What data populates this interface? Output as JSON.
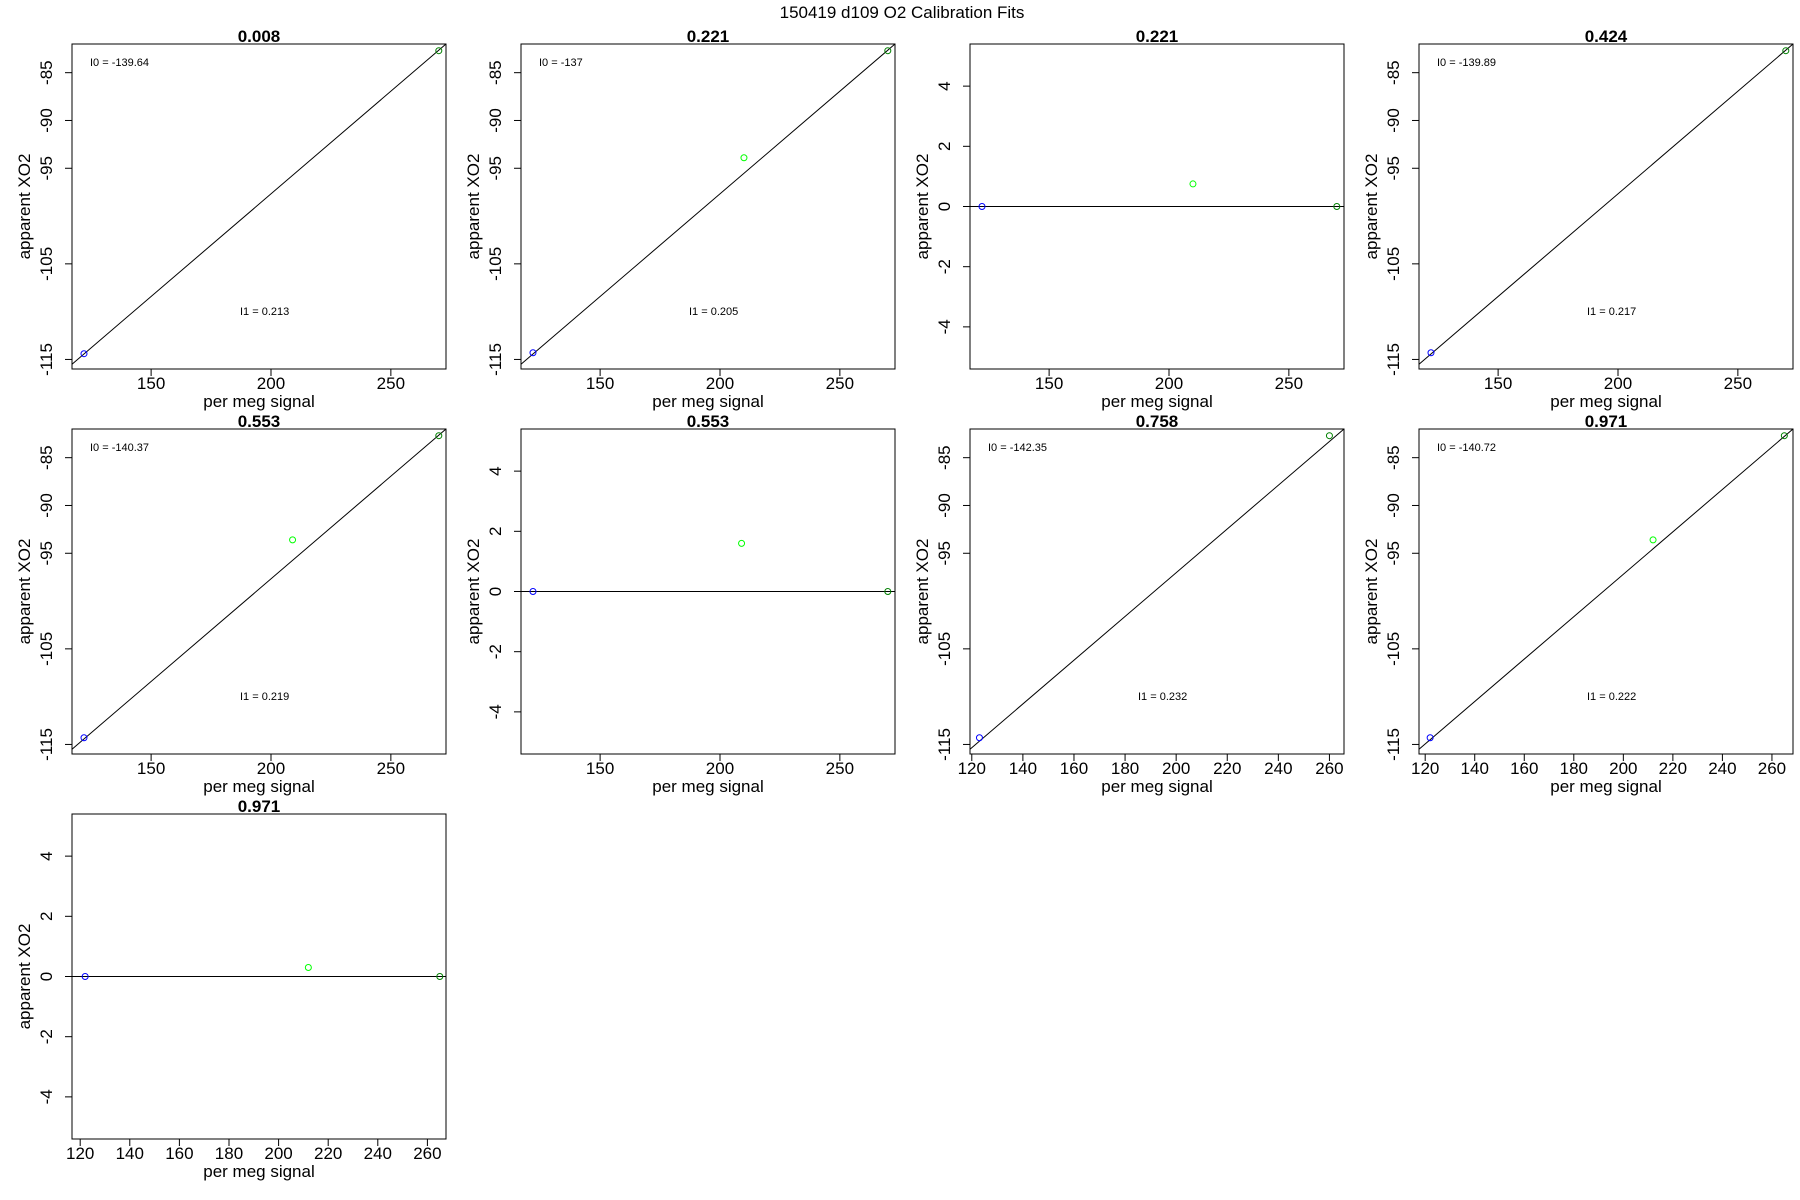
{
  "figure_title": "150419   d109   O2 Calibration Fits",
  "colors": {
    "background": "#ffffff",
    "axis": "#000000",
    "fit_line": "#000000",
    "point_low": "#0000ff",
    "point_mid": "#00ff00",
    "point_high": "#008000"
  },
  "chart_data": [
    {
      "type": "scatter",
      "title": "0.008",
      "xlabel": "per meg signal",
      "ylabel": "apparent XO2",
      "xlim": [
        117,
        273
      ],
      "ylim": [
        -116,
        -82
      ],
      "xticks": [
        150,
        200,
        250
      ],
      "yticks": [
        -115,
        -105,
        -95,
        -90,
        -85
      ],
      "points": [
        {
          "x": 122,
          "y": -114.4,
          "color": "blue"
        },
        {
          "x": 270,
          "y": -82.7,
          "color": "darkgreen"
        }
      ],
      "fit": {
        "type": "line",
        "from": [
          117,
          -115.5
        ],
        "to": [
          273,
          -82
        ]
      },
      "annotations": [
        "I0 =  -139.64",
        "I1 =  0.213"
      ]
    },
    {
      "type": "scatter",
      "title": "0.221",
      "xlabel": "per meg signal",
      "ylabel": "apparent XO2",
      "xlim": [
        117,
        273
      ],
      "ylim": [
        -116,
        -82
      ],
      "xticks": [
        150,
        200,
        250
      ],
      "yticks": [
        -115,
        -105,
        -95,
        -90,
        -85
      ],
      "points": [
        {
          "x": 122,
          "y": -114.3,
          "color": "blue"
        },
        {
          "x": 210,
          "y": -93.9,
          "color": "green"
        },
        {
          "x": 270,
          "y": -82.7,
          "color": "darkgreen"
        }
      ],
      "fit": {
        "type": "line",
        "from": [
          117,
          -115.5
        ],
        "to": [
          273,
          -82
        ]
      },
      "annotations": [
        "I0 =  -137",
        "I1 =  0.205"
      ]
    },
    {
      "type": "scatter",
      "title": "0.221",
      "xlabel": "per meg signal",
      "ylabel": "apparent XO2",
      "xlim": [
        117,
        273
      ],
      "ylim": [
        -5.4,
        5.4
      ],
      "xticks": [
        150,
        200,
        250
      ],
      "yticks": [
        -4,
        -2,
        0,
        2,
        4
      ],
      "points": [
        {
          "x": 122,
          "y": 0,
          "color": "blue"
        },
        {
          "x": 210,
          "y": 0.75,
          "color": "green"
        },
        {
          "x": 270,
          "y": 0,
          "color": "darkgreen"
        }
      ],
      "fit": {
        "type": "hline",
        "y": 0
      },
      "annotations": []
    },
    {
      "type": "scatter",
      "title": "0.424",
      "xlabel": "per meg signal",
      "ylabel": "apparent XO2",
      "xlim": [
        117,
        273
      ],
      "ylim": [
        -116,
        -82
      ],
      "xticks": [
        150,
        200,
        250
      ],
      "yticks": [
        -115,
        -105,
        -95,
        -90,
        -85
      ],
      "points": [
        {
          "x": 122,
          "y": -114.3,
          "color": "blue"
        },
        {
          "x": 270,
          "y": -82.7,
          "color": "darkgreen"
        }
      ],
      "fit": {
        "type": "line",
        "from": [
          117,
          -115.5
        ],
        "to": [
          273,
          -82
        ]
      },
      "annotations": [
        "I0 =  -139.89",
        "I1 =  0.217"
      ]
    },
    {
      "type": "scatter",
      "title": "0.553",
      "xlabel": "per meg signal",
      "ylabel": "apparent XO2",
      "xlim": [
        117,
        273
      ],
      "ylim": [
        -116,
        -82
      ],
      "xticks": [
        150,
        200,
        250
      ],
      "yticks": [
        -115,
        -105,
        -95,
        -90,
        -85
      ],
      "points": [
        {
          "x": 122,
          "y": -114.3,
          "color": "blue"
        },
        {
          "x": 209,
          "y": -93.6,
          "color": "green"
        },
        {
          "x": 270,
          "y": -82.7,
          "color": "darkgreen"
        }
      ],
      "fit": {
        "type": "line",
        "from": [
          117,
          -115.5
        ],
        "to": [
          273,
          -82
        ]
      },
      "annotations": [
        "I0 =  -140.37",
        "I1 =  0.219"
      ]
    },
    {
      "type": "scatter",
      "title": "0.553",
      "xlabel": "per meg signal",
      "ylabel": "apparent XO2",
      "xlim": [
        117,
        273
      ],
      "ylim": [
        -5.4,
        5.4
      ],
      "xticks": [
        150,
        200,
        250
      ],
      "yticks": [
        -4,
        -2,
        0,
        2,
        4
      ],
      "points": [
        {
          "x": 122,
          "y": 0,
          "color": "blue"
        },
        {
          "x": 209,
          "y": 1.6,
          "color": "green"
        },
        {
          "x": 270,
          "y": 0,
          "color": "darkgreen"
        }
      ],
      "fit": {
        "type": "hline",
        "y": 0
      },
      "annotations": []
    },
    {
      "type": "scatter",
      "title": "0.758",
      "xlabel": "per meg signal",
      "ylabel": "apparent XO2",
      "xlim": [
        119.3,
        265.7
      ],
      "ylim": [
        -116,
        -82
      ],
      "xticks": [
        120,
        140,
        160,
        180,
        200,
        220,
        240,
        260
      ],
      "yticks": [
        -115,
        -105,
        -95,
        -90,
        -85
      ],
      "points": [
        {
          "x": 123,
          "y": -114.3,
          "color": "blue"
        },
        {
          "x": 260,
          "y": -82.7,
          "color": "darkgreen"
        }
      ],
      "fit": {
        "type": "line",
        "from": [
          119.3,
          -115.5
        ],
        "to": [
          265.7,
          -82
        ]
      },
      "annotations": [
        "I0 =  -142.35",
        "I1 =  0.232"
      ]
    },
    {
      "type": "scatter",
      "title": "0.971",
      "xlabel": "per meg signal",
      "ylabel": "apparent XO2",
      "xlim": [
        117.5,
        268.5
      ],
      "ylim": [
        -116,
        -82
      ],
      "xticks": [
        120,
        140,
        160,
        180,
        200,
        220,
        240,
        260
      ],
      "yticks": [
        -115,
        -105,
        -95,
        -90,
        -85
      ],
      "points": [
        {
          "x": 122,
          "y": -114.3,
          "color": "blue"
        },
        {
          "x": 212,
          "y": -93.6,
          "color": "green"
        },
        {
          "x": 265,
          "y": -82.7,
          "color": "darkgreen"
        }
      ],
      "fit": {
        "type": "line",
        "from": [
          117.5,
          -115.5
        ],
        "to": [
          268.5,
          -82
        ]
      },
      "annotations": [
        "I0 =  -140.72",
        "I1 =  0.222"
      ]
    },
    {
      "type": "scatter",
      "title": "0.971",
      "xlabel": "per meg signal",
      "ylabel": "apparent XO2",
      "xlim": [
        116.7,
        267.5
      ],
      "ylim": [
        -5.4,
        5.4
      ],
      "xticks": [
        120,
        140,
        160,
        180,
        200,
        220,
        240,
        260
      ],
      "yticks": [
        -4,
        -2,
        0,
        2,
        4
      ],
      "points": [
        {
          "x": 122,
          "y": 0,
          "color": "blue"
        },
        {
          "x": 212,
          "y": 0.3,
          "color": "green"
        },
        {
          "x": 265,
          "y": 0,
          "color": "darkgreen"
        }
      ],
      "fit": {
        "type": "hline",
        "y": 0
      },
      "annotations": []
    }
  ]
}
